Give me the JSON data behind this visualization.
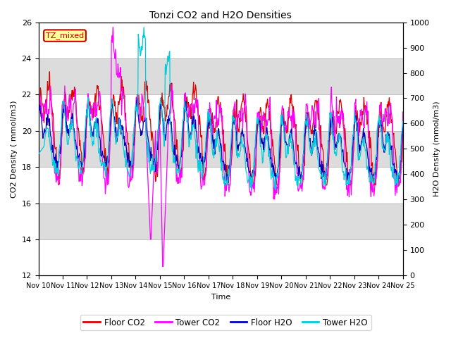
{
  "title": "Tonzi CO2 and H2O Densities",
  "xlabel": "Time",
  "ylabel_left": "CO2 Density ( mmol/m3)",
  "ylabel_right": "H2O Density (mmol/m3)",
  "ylim_left": [
    12,
    26
  ],
  "ylim_right": [
    0,
    1000
  ],
  "yticks_left": [
    12,
    14,
    16,
    18,
    20,
    22,
    24,
    26
  ],
  "yticks_right": [
    0,
    100,
    200,
    300,
    400,
    500,
    600,
    700,
    800,
    900,
    1000
  ],
  "xtick_labels": [
    "Nov 10",
    "Nov 11",
    "Nov 12",
    "Nov 13",
    "Nov 14",
    "Nov 15",
    "Nov 16",
    "Nov 17",
    "Nov 18",
    "Nov 19",
    "Nov 20",
    "Nov 21",
    "Nov 22",
    "Nov 23",
    "Nov 24",
    "Nov 25"
  ],
  "annotation_text": "TZ_mixed",
  "annotation_color": "#cc0000",
  "annotation_bg": "#ffff99",
  "floor_co2_color": "#dd0000",
  "tower_co2_color": "#ff00ff",
  "floor_h2o_color": "#0000bb",
  "tower_h2o_color": "#00ccdd",
  "band_colors": [
    "#ffffff",
    "#dcdcdc"
  ],
  "legend_labels": [
    "Floor CO2",
    "Tower CO2",
    "Floor H2O",
    "Tower H2O"
  ],
  "figsize": [
    6.4,
    4.8
  ],
  "dpi": 100
}
